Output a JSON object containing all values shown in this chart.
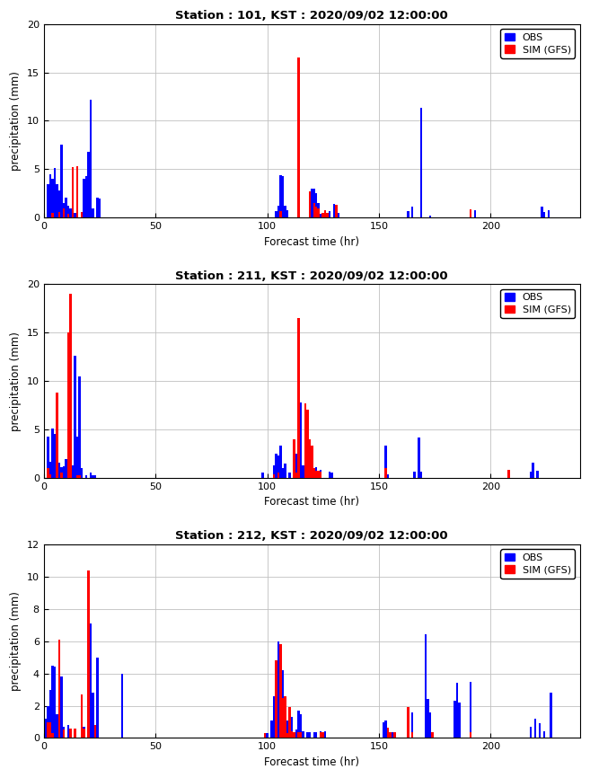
{
  "stations": [
    {
      "title": "Station : 101, KST : 2020/09/02 12:00:00",
      "ylim": [
        0,
        20
      ],
      "yticks": [
        0,
        5,
        10,
        15,
        20
      ],
      "obs": [
        [
          2,
          3.5
        ],
        [
          3,
          4.5
        ],
        [
          4,
          4.0
        ],
        [
          5,
          5.1
        ],
        [
          6,
          3.5
        ],
        [
          7,
          2.8
        ],
        [
          8,
          7.5
        ],
        [
          9,
          1.5
        ],
        [
          10,
          2.1
        ],
        [
          11,
          1.2
        ],
        [
          12,
          1.0
        ],
        [
          13,
          1.3
        ],
        [
          14,
          0.5
        ],
        [
          15,
          0.3
        ],
        [
          18,
          4.0
        ],
        [
          19,
          4.3
        ],
        [
          20,
          6.8
        ],
        [
          21,
          12.2
        ],
        [
          22,
          1.0
        ],
        [
          24,
          2.1
        ],
        [
          25,
          2.0
        ],
        [
          104,
          0.7
        ],
        [
          105,
          1.2
        ],
        [
          106,
          4.4
        ],
        [
          107,
          4.3
        ],
        [
          108,
          1.2
        ],
        [
          109,
          0.8
        ],
        [
          114,
          0.5
        ],
        [
          119,
          0.5
        ],
        [
          120,
          3.0
        ],
        [
          121,
          3.0
        ],
        [
          122,
          2.5
        ],
        [
          123,
          1.5
        ],
        [
          124,
          0.4
        ],
        [
          125,
          0.4
        ],
        [
          127,
          0.5
        ],
        [
          128,
          0.7
        ],
        [
          130,
          1.4
        ],
        [
          132,
          0.5
        ],
        [
          163,
          0.7
        ],
        [
          165,
          1.1
        ],
        [
          169,
          11.3
        ],
        [
          173,
          0.2
        ],
        [
          193,
          0.8
        ],
        [
          223,
          1.1
        ],
        [
          224,
          0.6
        ],
        [
          226,
          0.8
        ]
      ],
      "sim": [
        [
          4,
          0.5
        ],
        [
          7,
          0.6
        ],
        [
          9,
          1.0
        ],
        [
          11,
          0.4
        ],
        [
          13,
          5.2
        ],
        [
          15,
          5.3
        ],
        [
          17,
          0.6
        ],
        [
          106,
          0.7
        ],
        [
          114,
          16.5
        ],
        [
          119,
          2.7
        ],
        [
          121,
          1.5
        ],
        [
          122,
          1.1
        ],
        [
          123,
          1.0
        ],
        [
          125,
          0.5
        ],
        [
          126,
          0.8
        ],
        [
          127,
          0.5
        ],
        [
          131,
          1.3
        ],
        [
          191,
          0.9
        ]
      ]
    },
    {
      "title": "Station : 211, KST : 2020/09/02 12:00:00",
      "ylim": [
        0,
        20
      ],
      "yticks": [
        0,
        5,
        10,
        15,
        20
      ],
      "obs": [
        [
          2,
          4.3
        ],
        [
          3,
          1.7
        ],
        [
          4,
          5.1
        ],
        [
          5,
          4.5
        ],
        [
          6,
          2.1
        ],
        [
          7,
          1.6
        ],
        [
          8,
          1.1
        ],
        [
          9,
          1.2
        ],
        [
          10,
          1.9
        ],
        [
          11,
          1.8
        ],
        [
          12,
          1.0
        ],
        [
          13,
          1.3
        ],
        [
          14,
          12.6
        ],
        [
          15,
          4.3
        ],
        [
          16,
          10.5
        ],
        [
          17,
          1.0
        ],
        [
          19,
          0.3
        ],
        [
          21,
          0.5
        ],
        [
          22,
          0.3
        ],
        [
          23,
          0.3
        ],
        [
          98,
          0.5
        ],
        [
          103,
          1.3
        ],
        [
          104,
          2.5
        ],
        [
          105,
          2.3
        ],
        [
          106,
          3.3
        ],
        [
          107,
          1.0
        ],
        [
          108,
          1.5
        ],
        [
          110,
          0.5
        ],
        [
          113,
          2.5
        ],
        [
          114,
          6.0
        ],
        [
          115,
          7.8
        ],
        [
          116,
          1.3
        ],
        [
          117,
          2.0
        ],
        [
          118,
          6.9
        ],
        [
          119,
          3.2
        ],
        [
          120,
          3.0
        ],
        [
          122,
          1.1
        ],
        [
          123,
          0.6
        ],
        [
          124,
          0.8
        ],
        [
          128,
          0.6
        ],
        [
          129,
          0.5
        ],
        [
          153,
          3.3
        ],
        [
          154,
          0.4
        ],
        [
          166,
          0.6
        ],
        [
          168,
          4.2
        ],
        [
          169,
          0.6
        ],
        [
          218,
          0.6
        ],
        [
          219,
          1.6
        ],
        [
          221,
          0.7
        ]
      ],
      "sim": [
        [
          2,
          1.0
        ],
        [
          3,
          0.4
        ],
        [
          6,
          8.8
        ],
        [
          8,
          0.5
        ],
        [
          11,
          15.0
        ],
        [
          12,
          19.0
        ],
        [
          15,
          0.3
        ],
        [
          16,
          0.3
        ],
        [
          103,
          0.4
        ],
        [
          105,
          0.5
        ],
        [
          112,
          4.0
        ],
        [
          113,
          0.5
        ],
        [
          114,
          16.5
        ],
        [
          117,
          7.7
        ],
        [
          118,
          7.0
        ],
        [
          119,
          4.0
        ],
        [
          120,
          3.3
        ],
        [
          121,
          1.0
        ],
        [
          122,
          0.7
        ],
        [
          123,
          0.7
        ],
        [
          124,
          0.6
        ],
        [
          153,
          1.0
        ],
        [
          208,
          0.8
        ]
      ]
    },
    {
      "title": "Station : 212, KST : 2020/09/02 12:00:00",
      "ylim": [
        0,
        12
      ],
      "yticks": [
        0,
        2,
        4,
        6,
        8,
        10,
        12
      ],
      "obs": [
        [
          1,
          1.2
        ],
        [
          2,
          2.0
        ],
        [
          3,
          3.0
        ],
        [
          4,
          4.5
        ],
        [
          5,
          4.4
        ],
        [
          6,
          1.5
        ],
        [
          7,
          2.5
        ],
        [
          8,
          3.8
        ],
        [
          9,
          0.7
        ],
        [
          11,
          0.8
        ],
        [
          14,
          0.3
        ],
        [
          17,
          1.5
        ],
        [
          18,
          0.7
        ],
        [
          20,
          6.2
        ],
        [
          21,
          7.1
        ],
        [
          22,
          2.8
        ],
        [
          24,
          5.0
        ],
        [
          35,
          4.0
        ],
        [
          100,
          0.3
        ],
        [
          102,
          1.1
        ],
        [
          103,
          2.6
        ],
        [
          104,
          4.2
        ],
        [
          105,
          6.0
        ],
        [
          106,
          5.6
        ],
        [
          107,
          4.2
        ],
        [
          108,
          1.5
        ],
        [
          109,
          1.1
        ],
        [
          110,
          0.7
        ],
        [
          111,
          1.3
        ],
        [
          113,
          0.5
        ],
        [
          114,
          1.7
        ],
        [
          115,
          1.5
        ],
        [
          116,
          0.4
        ],
        [
          118,
          0.35
        ],
        [
          119,
          0.35
        ],
        [
          121,
          0.35
        ],
        [
          122,
          0.35
        ],
        [
          124,
          0.4
        ],
        [
          126,
          0.4
        ],
        [
          152,
          1.0
        ],
        [
          153,
          1.1
        ],
        [
          154,
          0.35
        ],
        [
          155,
          0.35
        ],
        [
          156,
          0.35
        ],
        [
          163,
          1.9
        ],
        [
          165,
          1.6
        ],
        [
          171,
          6.4
        ],
        [
          172,
          2.4
        ],
        [
          173,
          1.6
        ],
        [
          184,
          2.3
        ],
        [
          185,
          3.4
        ],
        [
          186,
          2.2
        ],
        [
          191,
          3.5
        ],
        [
          218,
          0.7
        ],
        [
          220,
          1.2
        ],
        [
          222,
          0.9
        ],
        [
          224,
          0.4
        ],
        [
          227,
          2.8
        ]
      ],
      "sim": [
        [
          2,
          1.0
        ],
        [
          3,
          1.0
        ],
        [
          4,
          0.3
        ],
        [
          7,
          6.1
        ],
        [
          9,
          0.5
        ],
        [
          12,
          0.6
        ],
        [
          14,
          0.6
        ],
        [
          17,
          2.7
        ],
        [
          18,
          0.6
        ],
        [
          20,
          10.4
        ],
        [
          23,
          0.8
        ],
        [
          99,
          0.3
        ],
        [
          104,
          4.8
        ],
        [
          106,
          5.8
        ],
        [
          107,
          2.5
        ],
        [
          108,
          2.6
        ],
        [
          109,
          0.3
        ],
        [
          110,
          1.9
        ],
        [
          111,
          0.4
        ],
        [
          112,
          0.35
        ],
        [
          114,
          0.35
        ],
        [
          115,
          0.35
        ],
        [
          124,
          0.35
        ],
        [
          125,
          0.35
        ],
        [
          154,
          0.65
        ],
        [
          155,
          0.35
        ],
        [
          157,
          0.35
        ],
        [
          163,
          1.9
        ],
        [
          165,
          0.35
        ],
        [
          174,
          0.35
        ],
        [
          191,
          0.35
        ]
      ]
    }
  ],
  "xlabel": "Forecast time (hr)",
  "ylabel": "precipitation (mm)",
  "xlim": [
    0,
    240
  ],
  "xticks": [
    0,
    50,
    100,
    150,
    200
  ],
  "bar_width": 1.0,
  "obs_color": "#0000ff",
  "sim_color": "#ff0000",
  "grid_color": "#c0c0c0",
  "bg_color": "#ffffff",
  "title_fontsize": 9.5,
  "label_fontsize": 8.5,
  "tick_fontsize": 8
}
